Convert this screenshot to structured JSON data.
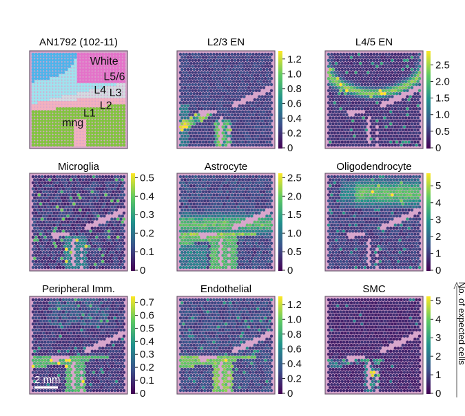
{
  "figure": {
    "side_label": "No. of expected cells",
    "scale_bar_label": "2 mm"
  },
  "chart_data": [
    {
      "type": "map",
      "panel": "anatomy",
      "title": "AN1792 (102-11)",
      "regions": [
        "White",
        "L5/6",
        "L4",
        "L3",
        "L2",
        "L1",
        "mng"
      ],
      "colors": {
        "White": "#e472c9",
        "L5/6": "#4db4ea",
        "L4": "#d4a6e0",
        "L3": "#9fe3ee",
        "L2": "#d2dbe0",
        "L1": "#f3b1bf",
        "mng": "#82c43f"
      }
    },
    {
      "type": "heatmap",
      "title": "L2/3 EN",
      "colorbar_ticks": [
        "1.2",
        "1.0",
        "0.8",
        "0.6",
        "0.4",
        "0.2",
        "0"
      ],
      "range": [
        0,
        1.3
      ],
      "pattern": "l23"
    },
    {
      "type": "heatmap",
      "title": "L4/5 EN",
      "colorbar_ticks": [
        "2.5",
        "2.0",
        "1.5",
        "1.0",
        "0.5",
        "0"
      ],
      "range": [
        0,
        2.9
      ],
      "pattern": "l45"
    },
    {
      "type": "heatmap",
      "title": "Microglia",
      "colorbar_ticks": [
        "0.5",
        "0.4",
        "0.3",
        "0.2",
        "0.1",
        "0"
      ],
      "range": [
        0,
        0.52
      ],
      "pattern": "micro"
    },
    {
      "type": "heatmap",
      "title": "Astrocyte",
      "colorbar_ticks": [
        "2.5",
        "2.0",
        "1.5",
        "1.0",
        "0.5",
        "0"
      ],
      "range": [
        0,
        2.6
      ],
      "pattern": "astro"
    },
    {
      "type": "heatmap",
      "title": "Oligodendrocyte",
      "colorbar_ticks": [
        "5",
        "4",
        "3",
        "2",
        "1",
        "0"
      ],
      "range": [
        0,
        5.7
      ],
      "pattern": "oligo"
    },
    {
      "type": "heatmap",
      "title": "Peripheral Imm.",
      "colorbar_ticks": [
        "0.7",
        "0.6",
        "0.5",
        "0.4",
        "0.3",
        "0.2",
        "0.1",
        "0"
      ],
      "range": [
        0,
        0.74
      ],
      "pattern": "perip"
    },
    {
      "type": "heatmap",
      "title": "Endothelial",
      "colorbar_ticks": [
        "1.2",
        "1.0",
        "0.8",
        "0.6",
        "0.4",
        "0.2",
        "0"
      ],
      "range": [
        0,
        1.3
      ],
      "pattern": "endo"
    },
    {
      "type": "heatmap",
      "title": "SMC",
      "colorbar_ticks": [
        "5",
        "4",
        "3",
        "2",
        "1",
        "0"
      ],
      "range": [
        0,
        5.2
      ],
      "pattern": "smc"
    }
  ]
}
